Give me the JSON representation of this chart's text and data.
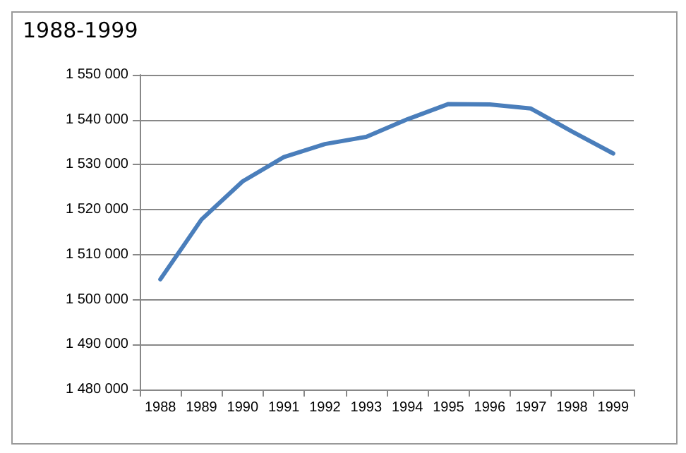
{
  "chart_data": {
    "type": "line",
    "title": "1988-1999",
    "categories": [
      "1988",
      "1989",
      "1990",
      "1991",
      "1992",
      "1993",
      "1994",
      "1995",
      "1996",
      "1997",
      "1998",
      "1999"
    ],
    "series": [
      {
        "color": "#4a7ebb",
        "values": [
          1504500,
          1517800,
          1526300,
          1531700,
          1534600,
          1536200,
          1540100,
          1543500,
          1543400,
          1542500,
          1537400,
          1532500
        ]
      }
    ],
    "ylim": [
      1480000,
      1550000
    ],
    "yticks": [
      {
        "value": 1480000,
        "label": "1 480 000"
      },
      {
        "value": 1490000,
        "label": "1 490 000"
      },
      {
        "value": 1500000,
        "label": "1 500 000"
      },
      {
        "value": 1510000,
        "label": "1 510 000"
      },
      {
        "value": 1520000,
        "label": "1 520 000"
      },
      {
        "value": 1530000,
        "label": "1 530 000"
      },
      {
        "value": 1540000,
        "label": "1 540 000"
      },
      {
        "value": 1550000,
        "label": "1 550 000"
      }
    ],
    "grid": "y",
    "marker": "none",
    "line_style": "solid"
  }
}
